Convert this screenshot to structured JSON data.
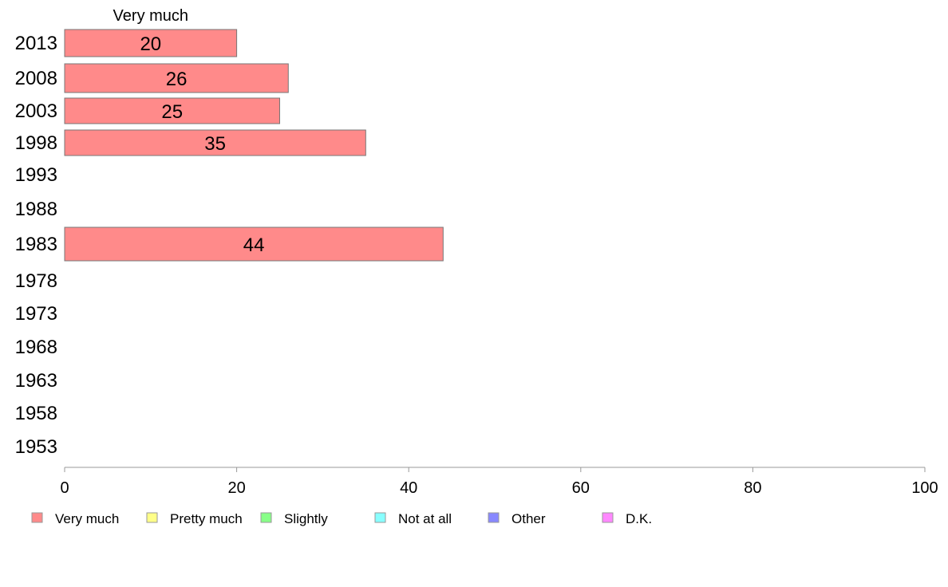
{
  "chart_data": {
    "type": "bar",
    "orientation": "horizontal",
    "stacked": true,
    "categories": [
      "2013",
      "2008",
      "2003",
      "1998",
      "1993",
      "1988",
      "1983",
      "1978",
      "1973",
      "1968",
      "1963",
      "1958",
      "1953"
    ],
    "series": [
      {
        "name": "Very much",
        "values": [
          20,
          26,
          25,
          35,
          null,
          null,
          44,
          null,
          null,
          null,
          null,
          null,
          null
        ],
        "color": "#ff8a8a"
      },
      {
        "name": "Pretty much",
        "values": [
          null,
          null,
          null,
          null,
          null,
          null,
          null,
          null,
          null,
          null,
          null,
          null,
          null
        ],
        "color": "#ffff88"
      },
      {
        "name": "Slightly",
        "values": [
          null,
          null,
          null,
          null,
          null,
          null,
          null,
          null,
          null,
          null,
          null,
          null,
          null
        ],
        "color": "#88ff88"
      },
      {
        "name": "Not at all",
        "values": [
          null,
          null,
          null,
          null,
          null,
          null,
          null,
          null,
          null,
          null,
          null,
          null,
          null
        ],
        "color": "#88ffff"
      },
      {
        "name": "Other",
        "values": [
          null,
          null,
          null,
          null,
          null,
          null,
          null,
          null,
          null,
          null,
          null,
          null,
          null
        ],
        "color": "#8888ff"
      },
      {
        "name": "D.K.",
        "values": [
          null,
          null,
          null,
          null,
          null,
          null,
          null,
          null,
          null,
          null,
          null,
          null,
          null
        ],
        "color": "#ff88ff"
      }
    ],
    "series_header": "Very much",
    "xlim": [
      0,
      100
    ],
    "xticks": [
      0,
      20,
      40,
      60,
      80,
      100
    ],
    "grid": false,
    "legend_position": "bottom",
    "bar_edge_color": "#777777"
  }
}
